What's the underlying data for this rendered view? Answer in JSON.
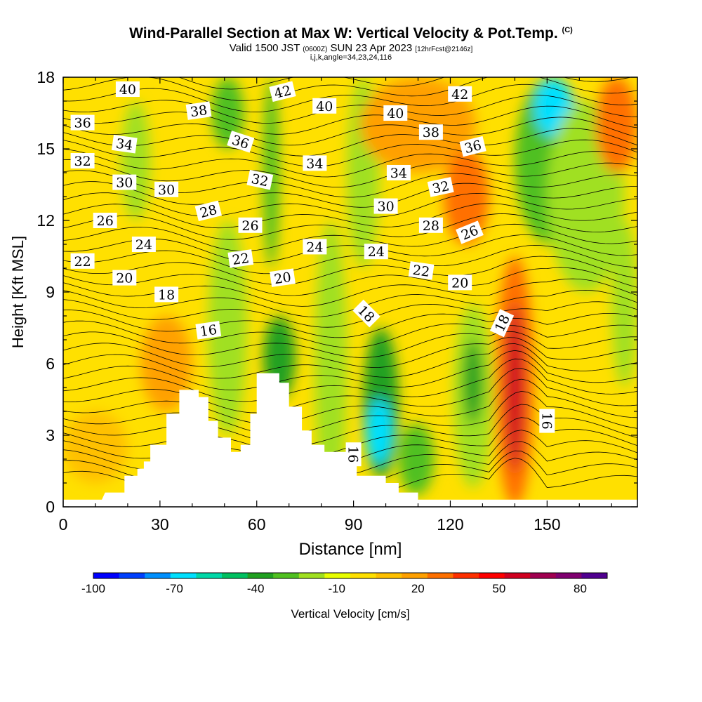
{
  "header": {
    "title": "Wind-Parallel Section at Max W: Vertical Velocity & Pot.Temp.",
    "copyright": "(C)",
    "valid_prefix": "Valid 1500 JST",
    "valid_utc": "(0600Z)",
    "valid_date": "SUN 23 Apr 2023",
    "forecast": "[12hrFcst@2146z]",
    "indices": "i,j,k,angle=34,23,24,116"
  },
  "chart_data": {
    "type": "heatmap",
    "xlabel": "Distance [nm]",
    "ylabel": "Height [Kft MSL]",
    "xlim": [
      0,
      178
    ],
    "ylim": [
      0,
      18
    ],
    "x_ticks": [
      0,
      30,
      60,
      90,
      120,
      150
    ],
    "y_ticks": [
      0,
      3,
      6,
      9,
      12,
      15,
      18
    ],
    "colorbar": {
      "label": "Vertical Velocity [cm/s]",
      "tick_labels": [
        -100,
        -70,
        -40,
        -10,
        20,
        50,
        80
      ],
      "range": [
        -100,
        90
      ],
      "step": 10,
      "colors": [
        "#0000ff",
        "#0040ff",
        "#0090ff",
        "#00e0ff",
        "#00d8a8",
        "#00c060",
        "#20a020",
        "#50c020",
        "#a0e020",
        "#e8ff00",
        "#ffe000",
        "#ffc000",
        "#ffa000",
        "#ff7000",
        "#ff3000",
        "#ff0000",
        "#d00020",
        "#a00050",
        "#800070",
        "#500090"
      ]
    },
    "terrain": [
      [
        0,
        0.3
      ],
      [
        12,
        0.3
      ],
      [
        13,
        0.6
      ],
      [
        19,
        0.6
      ],
      [
        19,
        1.3
      ],
      [
        23,
        1.3
      ],
      [
        23,
        1.6
      ],
      [
        25,
        1.6
      ],
      [
        25,
        1.9
      ],
      [
        27,
        1.9
      ],
      [
        27,
        2.6
      ],
      [
        32,
        2.6
      ],
      [
        32,
        3.9
      ],
      [
        36,
        3.9
      ],
      [
        36,
        4.9
      ],
      [
        42,
        4.9
      ],
      [
        42,
        4.6
      ],
      [
        45,
        4.6
      ],
      [
        45,
        3.6
      ],
      [
        48,
        3.6
      ],
      [
        48,
        2.9
      ],
      [
        52,
        2.9
      ],
      [
        52,
        2.3
      ],
      [
        55,
        2.3
      ],
      [
        55,
        2.6
      ],
      [
        58,
        2.6
      ],
      [
        58,
        3.9
      ],
      [
        60,
        3.9
      ],
      [
        60,
        5.6
      ],
      [
        67,
        5.6
      ],
      [
        67,
        5.2
      ],
      [
        70,
        5.2
      ],
      [
        70,
        4.2
      ],
      [
        74,
        4.2
      ],
      [
        74,
        3.2
      ],
      [
        77,
        3.2
      ],
      [
        77,
        2.6
      ],
      [
        81,
        2.6
      ],
      [
        81,
        2.3
      ],
      [
        91,
        2.3
      ],
      [
        91,
        1.3
      ],
      [
        100,
        1.3
      ],
      [
        100,
        1.0
      ],
      [
        104,
        1.0
      ],
      [
        104,
        0.6
      ],
      [
        110,
        0.6
      ],
      [
        110,
        0.3
      ],
      [
        178,
        0.3
      ]
    ],
    "velocity_cells": [
      {
        "x": [
          78,
          88
        ],
        "y": [
          0,
          12
        ],
        "w": -15
      },
      {
        "x": [
          93,
          104
        ],
        "y": [
          1.2,
          7.5
        ],
        "w": -40
      },
      {
        "x": [
          94,
          102
        ],
        "y": [
          1.8,
          4.5
        ],
        "w": -70
      },
      {
        "x": [
          121,
          133
        ],
        "y": [
          0.8,
          8.5
        ],
        "w": -20
      },
      {
        "x": [
          124,
          130
        ],
        "y": [
          3.5,
          7
        ],
        "w": -35
      },
      {
        "x": [
          134,
          146
        ],
        "y": [
          0,
          10.5
        ],
        "w": 30
      },
      {
        "x": [
          137,
          143
        ],
        "y": [
          1.5,
          8.5
        ],
        "w": 60
      },
      {
        "x": [
          140,
          162
        ],
        "y": [
          11,
          18
        ],
        "w": -30
      },
      {
        "x": [
          146,
          158
        ],
        "y": [
          15.5,
          18
        ],
        "w": -70
      },
      {
        "x": [
          150,
          174
        ],
        "y": [
          9,
          17
        ],
        "w": -15
      },
      {
        "x": [
          170,
          178
        ],
        "y": [
          5,
          12
        ],
        "w": -15
      },
      {
        "x": [
          24,
          40
        ],
        "y": [
          4,
          8
        ],
        "w": 25
      },
      {
        "x": [
          45,
          57
        ],
        "y": [
          3,
          12
        ],
        "w": -20
      },
      {
        "x": [
          62,
          72
        ],
        "y": [
          4.5,
          8
        ],
        "w": -40
      },
      {
        "x": [
          62,
          67
        ],
        "y": [
          10,
          18
        ],
        "w": -25
      },
      {
        "x": [
          46,
          56
        ],
        "y": [
          15,
          18
        ],
        "w": -25
      },
      {
        "x": [
          18,
          27
        ],
        "y": [
          12,
          17
        ],
        "w": -15
      },
      {
        "x": [
          88,
          98
        ],
        "y": [
          10,
          18
        ],
        "w": -15
      },
      {
        "x": [
          92,
          128
        ],
        "y": [
          14,
          18
        ],
        "w": 20
      },
      {
        "x": [
          118,
          132
        ],
        "y": [
          11,
          15
        ],
        "w": 30
      },
      {
        "x": [
          165,
          178
        ],
        "y": [
          14,
          18
        ],
        "w": 30
      },
      {
        "x": [
          0,
          20
        ],
        "y": [
          1,
          4
        ],
        "w": 15
      },
      {
        "x": [
          104,
          115
        ],
        "y": [
          0.5,
          3.5
        ],
        "w": -25
      }
    ],
    "isotherm_labels": [
      {
        "text": "40",
        "x": 20,
        "y": 17.5,
        "angle": 0
      },
      {
        "text": "38",
        "x": 42,
        "y": 16.6,
        "angle": -8
      },
      {
        "text": "42",
        "x": 68,
        "y": 17.4,
        "angle": -14
      },
      {
        "text": "40",
        "x": 81,
        "y": 16.8,
        "angle": 0
      },
      {
        "text": "40",
        "x": 103,
        "y": 16.5,
        "angle": 0
      },
      {
        "text": "42",
        "x": 123,
        "y": 17.3,
        "angle": 0
      },
      {
        "text": "36",
        "x": 6,
        "y": 16.1,
        "angle": 0
      },
      {
        "text": "34",
        "x": 19,
        "y": 15.2,
        "angle": 8
      },
      {
        "text": "36",
        "x": 55,
        "y": 15.3,
        "angle": 18
      },
      {
        "text": "38",
        "x": 114,
        "y": 15.7,
        "angle": 0
      },
      {
        "text": "36",
        "x": 127,
        "y": 15.1,
        "angle": -14
      },
      {
        "text": "32",
        "x": 6,
        "y": 14.5,
        "angle": 0
      },
      {
        "text": "34",
        "x": 78,
        "y": 14.4,
        "angle": 0
      },
      {
        "text": "34",
        "x": 104,
        "y": 14.0,
        "angle": 0
      },
      {
        "text": "30",
        "x": 19,
        "y": 13.6,
        "angle": 0
      },
      {
        "text": "30",
        "x": 32,
        "y": 13.3,
        "angle": 0
      },
      {
        "text": "32",
        "x": 61,
        "y": 13.7,
        "angle": 12
      },
      {
        "text": "32",
        "x": 117,
        "y": 13.4,
        "angle": -12
      },
      {
        "text": "28",
        "x": 45,
        "y": 12.4,
        "angle": -14
      },
      {
        "text": "30",
        "x": 100,
        "y": 12.6,
        "angle": 0
      },
      {
        "text": "26",
        "x": 13,
        "y": 12.0,
        "angle": 0
      },
      {
        "text": "26",
        "x": 58,
        "y": 11.8,
        "angle": 0
      },
      {
        "text": "28",
        "x": 114,
        "y": 11.8,
        "angle": 0
      },
      {
        "text": "26",
        "x": 126,
        "y": 11.5,
        "angle": -22
      },
      {
        "text": "24",
        "x": 25,
        "y": 11.0,
        "angle": 0
      },
      {
        "text": "24",
        "x": 78,
        "y": 10.9,
        "angle": 0
      },
      {
        "text": "24",
        "x": 97,
        "y": 10.7,
        "angle": 0
      },
      {
        "text": "22",
        "x": 6,
        "y": 10.3,
        "angle": 0
      },
      {
        "text": "22",
        "x": 55,
        "y": 10.4,
        "angle": -8
      },
      {
        "text": "22",
        "x": 111,
        "y": 9.9,
        "angle": 8
      },
      {
        "text": "20",
        "x": 19,
        "y": 9.6,
        "angle": 0
      },
      {
        "text": "20",
        "x": 68,
        "y": 9.6,
        "angle": -8
      },
      {
        "text": "20",
        "x": 123,
        "y": 9.4,
        "angle": 0
      },
      {
        "text": "18",
        "x": 32,
        "y": 8.9,
        "angle": 0
      },
      {
        "text": "18",
        "x": 94,
        "y": 8.1,
        "angle": 45
      },
      {
        "text": "18",
        "x": 136,
        "y": 7.7,
        "angle": -65
      },
      {
        "text": "16",
        "x": 45,
        "y": 7.4,
        "angle": -8
      },
      {
        "text": "16",
        "x": 150,
        "y": 3.6,
        "angle": 90
      },
      {
        "text": "16",
        "x": 90,
        "y": 2.2,
        "angle": 90
      }
    ]
  }
}
